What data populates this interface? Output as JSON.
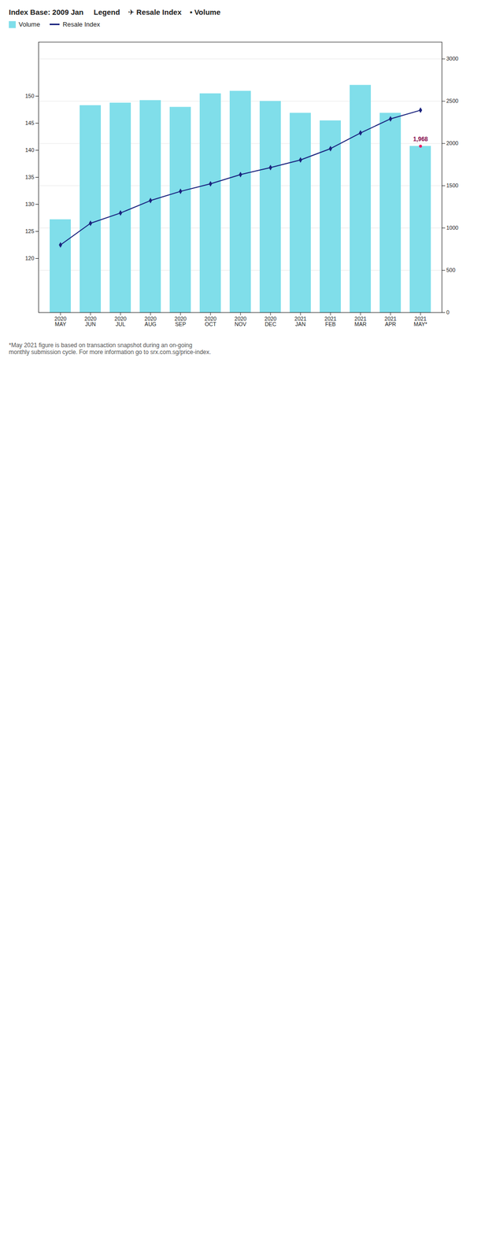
{
  "chart_data": {
    "type": "bar",
    "title": "Index Base: 2009 Jan     Legend    ✈ Resale Index    ▪ Volume",
    "caption": "*May 2021 figure is based on transaction snapshot during an on-going\nmonthly submission cycle. For more information go to srx.com.sg/price-index.",
    "categories": [
      "2020\nMAY",
      "2020\nJUN",
      "2020\nJUL",
      "2020\nAUG",
      "2020\nSEP",
      "2020\nOCT",
      "2020\nNOV",
      "2020\nDEC",
      "2021\nJAN",
      "2021\nFEB",
      "2021\nMAR",
      "2021\nAPR",
      "2021\nMAY*"
    ],
    "series": [
      {
        "name": "Volume",
        "type": "bar",
        "color": "#80deea",
        "values": [
          1100,
          2450,
          2480,
          2510,
          2430,
          2590,
          2620,
          2500,
          2360,
          2270,
          2690,
          2360,
          1968
        ]
      },
      {
        "name": "Resale Index",
        "type": "line",
        "axis": "y2",
        "color": "#1a237e",
        "marker": "diamond",
        "values": [
          122.5,
          126.5,
          128.4,
          130.7,
          132.4,
          133.8,
          135.5,
          136.8,
          138.2,
          140.3,
          143.2,
          145.8,
          147.4
        ]
      }
    ],
    "ylim": [
      0,
      3200
    ],
    "yticks": [
      0,
      500,
      1000,
      1500,
      2000,
      2500,
      3000
    ],
    "y2lim": [
      110,
      160
    ],
    "y2ticks": [
      120,
      125,
      130,
      135,
      140,
      145,
      150
    ],
    "grid": true,
    "legend": "top",
    "annotations": [
      {
        "text": "1,968",
        "x": "2021\nMAY*",
        "y": 1968
      }
    ]
  }
}
